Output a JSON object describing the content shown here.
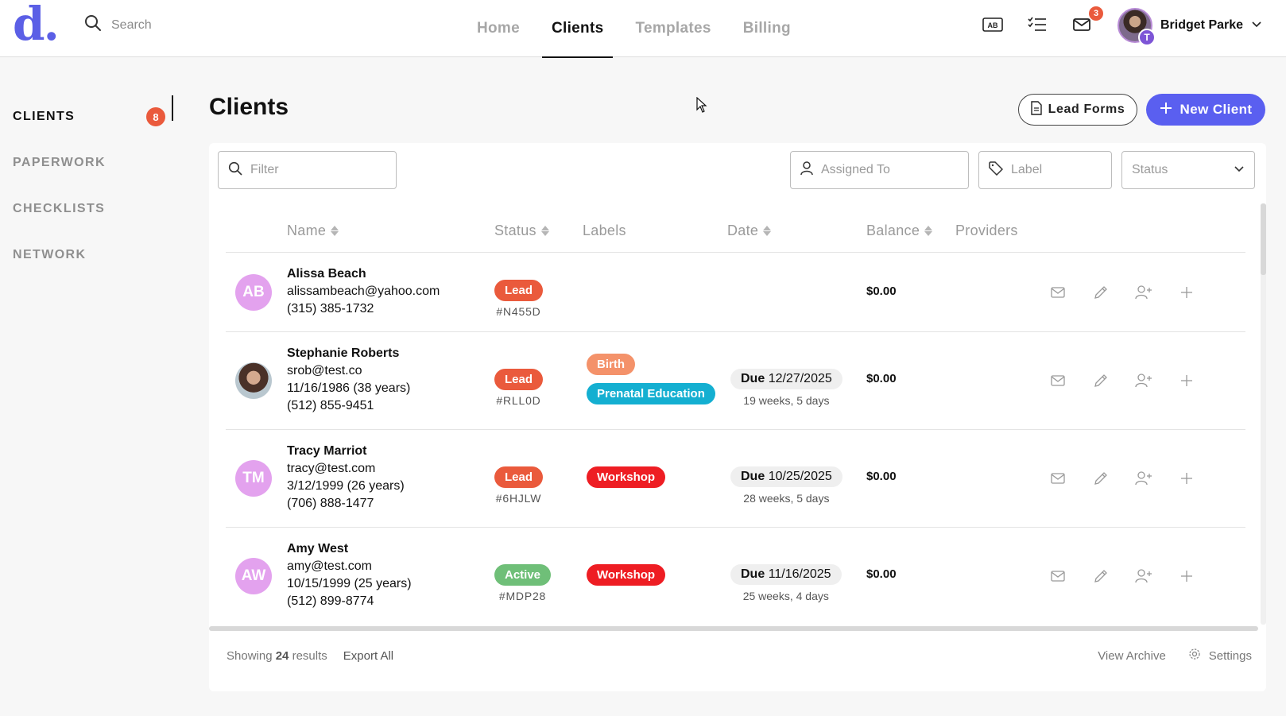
{
  "app": {
    "logo_text": "d",
    "logo_dot": "."
  },
  "topbar": {
    "search_placeholder": "Search",
    "nav": [
      "Home",
      "Clients",
      "Templates",
      "Billing"
    ],
    "active_nav": "Clients",
    "mail_badge": "3",
    "user_name": "Bridget Parke",
    "user_initial": "T"
  },
  "sidebar": {
    "items": [
      {
        "label": "CLIENTS",
        "count": "8"
      },
      {
        "label": "PAPERWORK"
      },
      {
        "label": "CHECKLISTS"
      },
      {
        "label": "NETWORK"
      }
    ]
  },
  "main": {
    "title": "Clients",
    "lead_forms_label": "Lead Forms",
    "new_client_label": "New Client"
  },
  "filters": {
    "filter_placeholder": "Filter",
    "assigned_placeholder": "Assigned To",
    "label_placeholder": "Label",
    "status_placeholder": "Status"
  },
  "table": {
    "columns": [
      "Name",
      "Status",
      "Labels",
      "Date",
      "Balance",
      "Providers"
    ],
    "rows": [
      {
        "initials": "AB",
        "name": "Alissa Beach",
        "email": "alissambeach@yahoo.com",
        "dob": "",
        "phone": "(315) 385-1732",
        "status": "Lead",
        "code": "#N455D",
        "labels": [],
        "due_prefix": "",
        "due_date": "",
        "relative": "",
        "balance": "$0.00"
      },
      {
        "initials": "",
        "name": "Stephanie Roberts",
        "email": "srob@test.co",
        "dob": "11/16/1986 (38 years)",
        "phone": "(512) 855-9451",
        "status": "Lead",
        "code": "#RLL0D",
        "labels": [
          "Birth",
          "Prenatal Education"
        ],
        "due_prefix": "Due",
        "due_date": "12/27/2025",
        "relative": "19 weeks, 5 days",
        "balance": "$0.00"
      },
      {
        "initials": "TM",
        "name": "Tracy Marriot",
        "email": "tracy@test.com",
        "dob": "3/12/1999 (26 years)",
        "phone": "(706) 888-1477",
        "status": "Lead",
        "code": "#6HJLW",
        "labels": [
          "Workshop"
        ],
        "due_prefix": "Due",
        "due_date": "10/25/2025",
        "relative": "28 weeks, 5 days",
        "balance": "$0.00"
      },
      {
        "initials": "AW",
        "name": "Amy West",
        "email": "amy@test.com",
        "dob": "10/15/1999 (25 years)",
        "phone": "(512) 899-8774",
        "status": "Active",
        "code": "#MDP28",
        "labels": [
          "Workshop"
        ],
        "due_prefix": "Due",
        "due_date": "11/16/2025",
        "relative": "25 weeks, 4 days",
        "balance": "$0.00"
      }
    ]
  },
  "footer": {
    "showing_prefix": "Showing",
    "showing_count": "24",
    "showing_suffix": "results",
    "export_label": "Export All",
    "archive_label": "View Archive",
    "settings_label": "Settings"
  },
  "colors": {
    "accent": "#5a5ff0",
    "lead": "#ea5a3c",
    "active": "#6fbf78",
    "birth": "#f4926a",
    "prenatal": "#14afd1",
    "workshop": "#ee1d23",
    "avatar": "#e3a2ee"
  }
}
